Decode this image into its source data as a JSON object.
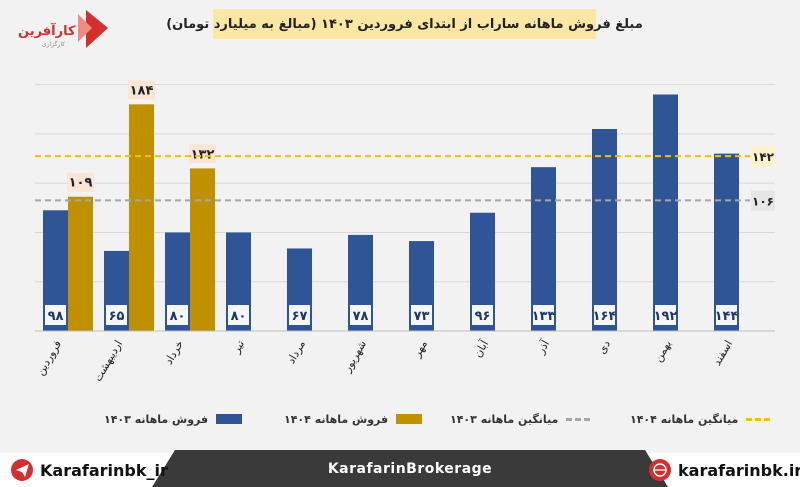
{
  "logo": {
    "name": "کارآفرین",
    "sub": "کارگزاری"
  },
  "chart_data": {
    "type": "bar",
    "title": "مبلغ فروش ماهانه ساراب از ابتدای فروردین ۱۴۰۳ (مبالغ به میلیارد تومان)",
    "categories": [
      "فروردین",
      "اردیبهشت",
      "خرداد",
      "تیر",
      "مرداد",
      "شهریور",
      "مهر",
      "آبان",
      "آذر",
      "دی",
      "بهمن",
      "اسفند"
    ],
    "series": [
      {
        "name": "فروش ماهانه ۱۴۰۳",
        "color": "#2f5597",
        "values": [
          98,
          65,
          80,
          80,
          67,
          78,
          73,
          96,
          133,
          164,
          192,
          144
        ],
        "labels": [
          "۹۸",
          "۶۵",
          "۸۰",
          "۸۰",
          "۶۷",
          "۷۸",
          "۷۳",
          "۹۶",
          "۱۳۳",
          "۱۶۴",
          "۱۹۲",
          "۱۴۴"
        ]
      },
      {
        "name": "فروش ماهانه ۱۴۰۴",
        "color": "#bf9000",
        "values": [
          109,
          184,
          132,
          null,
          null,
          null,
          null,
          null,
          null,
          null,
          null,
          null
        ],
        "labels": [
          "۱۰۹",
          "۱۸۴",
          "۱۳۲",
          "",
          "",
          "",
          "",
          "",
          "",
          "",
          "",
          ""
        ]
      }
    ],
    "averages": [
      {
        "name": "میانگین ماهانه ۱۴۰۳",
        "value": 106,
        "label": "۱۰۶",
        "color": "#a6a6a6"
      },
      {
        "name": "میانگین ماهانه ۱۴۰۴",
        "value": 142,
        "label": "۱۴۲",
        "color": "#f2c200"
      }
    ],
    "ylim": [
      0,
      220
    ],
    "grid": true,
    "legend": "bottom"
  },
  "footer": {
    "left": "Karafarinbk_ir",
    "center": "KarafarinBrokerage",
    "right": "karafarinbk.ir"
  }
}
